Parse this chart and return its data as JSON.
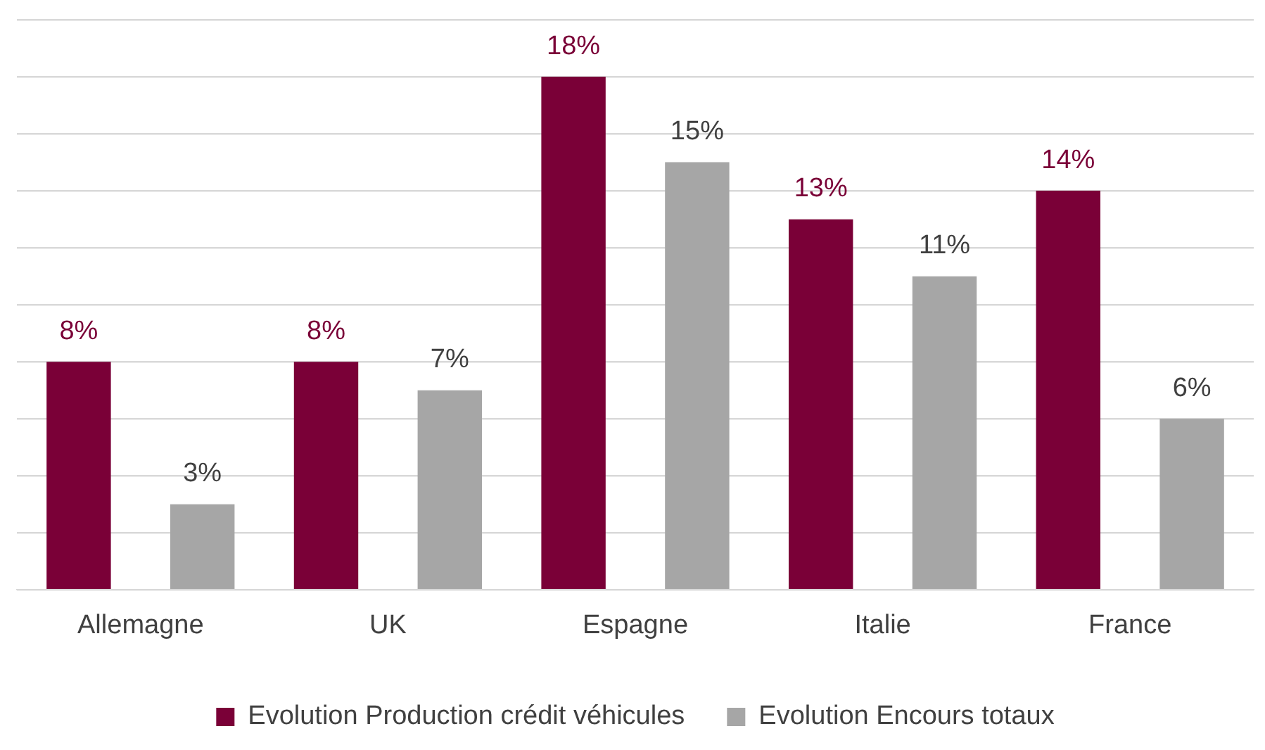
{
  "chart_data": {
    "type": "bar",
    "categories": [
      "Allemagne",
      "UK",
      "Espagne",
      "Italie",
      "France"
    ],
    "series": [
      {
        "name": "Evolution Production crédit véhicules",
        "color": "#7a0037",
        "values": [
          8,
          8,
          18,
          13,
          14
        ],
        "value_labels": [
          "8%",
          "8%",
          "18%",
          "13%",
          "14%"
        ]
      },
      {
        "name": "Evolution Encours totaux",
        "color": "#a6a6a6",
        "values": [
          3,
          7,
          15,
          11,
          6
        ],
        "value_labels": [
          "3%",
          "7%",
          "15%",
          "11%",
          "6%"
        ]
      }
    ],
    "ylim": [
      0,
      20
    ],
    "yticks": [
      {
        "value": 0,
        "label": null
      },
      {
        "value": 2,
        "label": null
      },
      {
        "value": 4,
        "label": null
      },
      {
        "value": 6,
        "label": null
      },
      {
        "value": 8,
        "label": null
      },
      {
        "value": 10,
        "label": null
      },
      {
        "value": 12,
        "label": null
      },
      {
        "value": 14,
        "label": null
      },
      {
        "value": 16,
        "label": null
      },
      {
        "value": 18,
        "label": null
      },
      {
        "value": 20,
        "label": null
      }
    ],
    "grid": "y",
    "tick_labels": "x",
    "legend": "bottom"
  }
}
